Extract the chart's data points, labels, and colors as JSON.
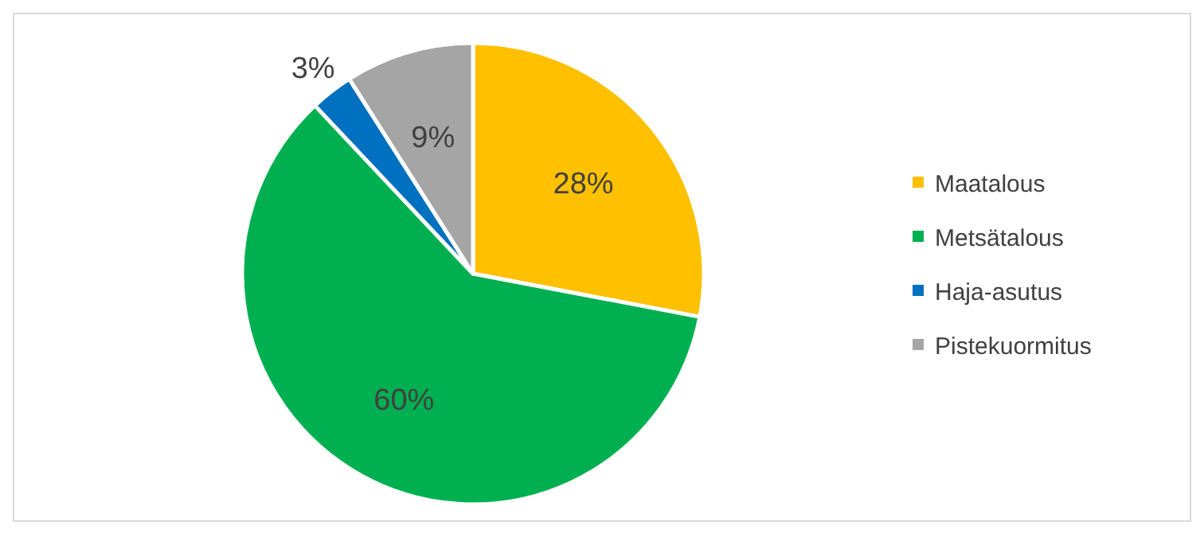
{
  "chart_data": {
    "type": "pie",
    "categories": [
      "Maatalous",
      "Metsätalous",
      "Haja-asutus",
      "Pistekuormitus"
    ],
    "values": [
      28,
      60,
      3,
      9
    ],
    "colors": [
      "#ffc000",
      "#00b050",
      "#0070c0",
      "#a5a5a5"
    ],
    "value_labels": [
      "28%",
      "60%",
      "3%",
      "9%"
    ],
    "legend": "right"
  }
}
